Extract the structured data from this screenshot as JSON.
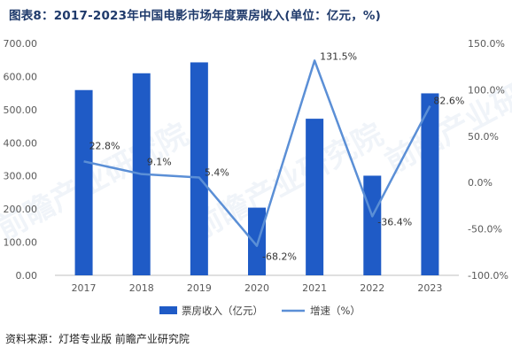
{
  "title": "图表8：2017-2023年中国电影市场年度票房收入(单位：亿元，%)",
  "source": "资料来源：灯塔专业版 前瞻产业研究院",
  "watermark": "前瞻产业研究院",
  "colors": {
    "bar": "#1f5bc6",
    "line": "#5b8fd6",
    "title": "#1f3a6b"
  },
  "chart_data": {
    "type": "bar",
    "categories": [
      "2017",
      "2018",
      "2019",
      "2020",
      "2021",
      "2022",
      "2023"
    ],
    "series": [
      {
        "name": "票房收入（亿元）",
        "type": "bar",
        "axis": "left",
        "values": [
          559.1,
          609.8,
          642.7,
          204.2,
          472.6,
          300.7,
          549.2
        ]
      },
      {
        "name": "增速（%）",
        "type": "line",
        "axis": "right",
        "values": [
          22.8,
          9.1,
          5.4,
          -68.2,
          131.5,
          -36.4,
          82.6
        ],
        "labels": [
          "22.8%",
          "9.1%",
          "5.4%",
          "-68.2%",
          "131.5%",
          "-36.4%",
          "82.6%"
        ]
      }
    ],
    "ylim_left": [
      0,
      700
    ],
    "yticks_left": [
      "0.00",
      "100.00",
      "200.00",
      "300.00",
      "400.00",
      "500.00",
      "600.00",
      "700.00"
    ],
    "ylim_right": [
      -100,
      150
    ],
    "yticks_right": [
      "-100.0%",
      "-50.0%",
      "0.0%",
      "50.0%",
      "100.0%",
      "150.0%"
    ],
    "grid": false,
    "legend": "bottom"
  }
}
